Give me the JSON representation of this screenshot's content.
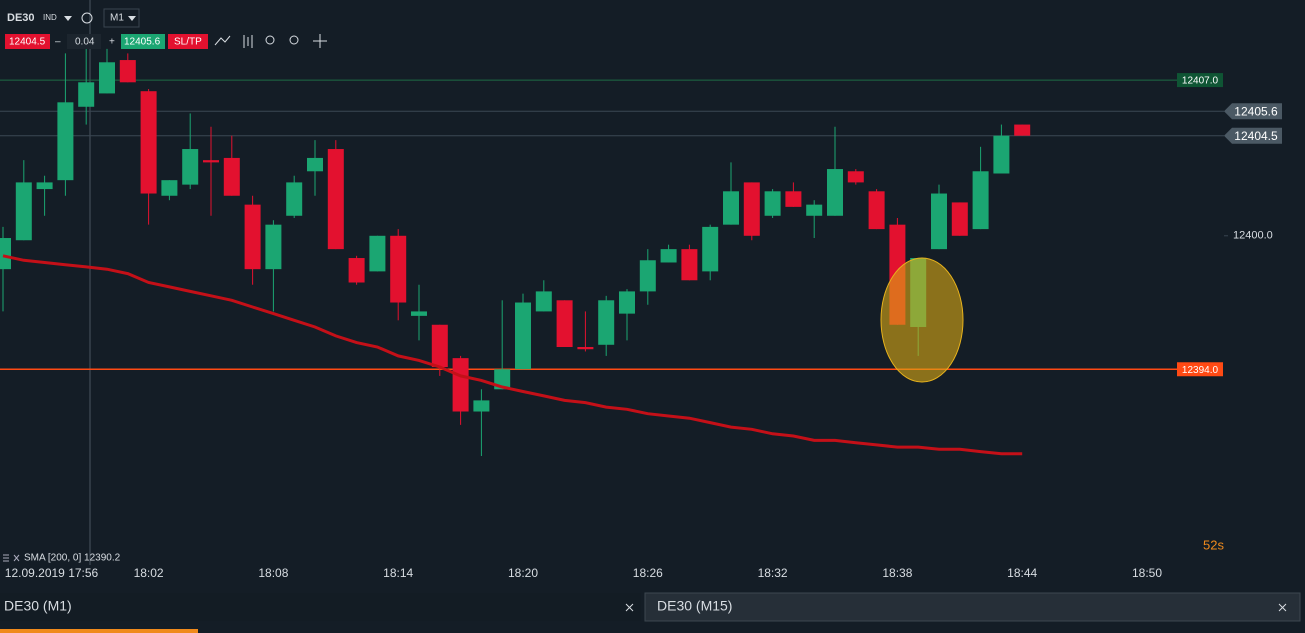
{
  "toolbar": {
    "symbol": "DE30",
    "instrument_type": "IND",
    "timeframe": "M1",
    "bid": "12404.5",
    "minus": "–",
    "quantity": "0.04",
    "plus": "+",
    "ask": "12405.6",
    "sl_tp": "SL/TP"
  },
  "indicator": "SMA [200, 0] 12390.2",
  "countdown": "52s",
  "tabs": [
    "DE30 (M1)",
    "DE30 (M15)"
  ],
  "chart_data": {
    "type": "candlestick",
    "categories": [
      null,
      "12.09.2019 17:56",
      null,
      null,
      null,
      null,
      null,
      "18:02",
      null,
      null,
      null,
      null,
      null,
      "18:08",
      null,
      null,
      null,
      null,
      null,
      "18:14",
      null,
      null,
      null,
      null,
      null,
      "18:20",
      null,
      null,
      null,
      null,
      null,
      "18:26",
      null,
      null,
      null,
      null,
      null,
      "18:32",
      null,
      null,
      null,
      null,
      null,
      "18:38",
      null,
      null,
      null,
      null,
      null,
      "18:44",
      null,
      null,
      null,
      null,
      null,
      "18:50"
    ],
    "open": [
      12398.5,
      12399.8,
      12402.1,
      12402.5,
      12405.8,
      12406.4,
      12407.9,
      12406.5,
      12401.8,
      12402.3,
      12403.4,
      12403.5,
      12401.4,
      12398.5,
      12400.9,
      12402.9,
      12403.9,
      12399.0,
      12398.4,
      12400.0,
      12396.4,
      12396.0,
      12394.5,
      12392.1,
      12393.1,
      12394.0,
      12396.6,
      12397.1,
      12395.0,
      12395.1,
      12396.5,
      12397.5,
      12398.8,
      12399.4,
      12398.4,
      12400.5,
      12402.4,
      12400.9,
      12402.0,
      12400.9,
      12400.9,
      12402.9,
      12402.0,
      12400.5,
      12395.9,
      12399.4,
      12401.5,
      12400.3,
      12402.8,
      12405.0,
      null,
      null,
      null,
      null,
      null,
      null
    ],
    "high": [
      12400.4,
      12403.4,
      12402.7,
      12408.2,
      12408.4,
      12408.4,
      12408.2,
      12406.6,
      12402.5,
      12405.5,
      12404.9,
      12404.5,
      12401.8,
      12400.7,
      12402.7,
      12404.3,
      12404.3,
      12399.1,
      12400.0,
      12400.3,
      12397.8,
      12396.0,
      12394.6,
      12393.1,
      12397.1,
      12397.4,
      12398.0,
      12397.1,
      12396.6,
      12397.3,
      12397.6,
      12399.4,
      12399.6,
      12399.6,
      12400.5,
      12403.3,
      12402.4,
      12402.1,
      12402.4,
      12401.6,
      12404.9,
      12403.0,
      12402.1,
      12400.8,
      12399.0,
      12402.3,
      12401.5,
      12404.0,
      12405.0,
      12405.0,
      null,
      null,
      null,
      null,
      null,
      null
    ],
    "low": [
      12396.6,
      12399.8,
      12400.9,
      12401.8,
      12405.0,
      12406.4,
      12406.9,
      12400.5,
      12401.6,
      12402.1,
      12400.9,
      12401.8,
      12397.8,
      12396.6,
      12400.8,
      12401.8,
      12399.4,
      12397.8,
      12398.4,
      12396.2,
      12395.3,
      12393.7,
      12391.5,
      12390.1,
      12393.1,
      12394.0,
      12396.6,
      12395.0,
      12394.8,
      12394.6,
      12395.3,
      12396.9,
      12398.8,
      12398.0,
      12398.0,
      12400.5,
      12399.8,
      12400.8,
      12401.3,
      12399.9,
      12400.9,
      12402.3,
      12400.3,
      12396.0,
      12394.6,
      12399.4,
      12400.0,
      12400.3,
      12402.8,
      12404.5,
      null,
      null,
      null,
      null,
      null,
      null
    ],
    "close": [
      12399.9,
      12402.4,
      12402.4,
      12406.0,
      12406.9,
      12407.8,
      12406.9,
      12401.9,
      12402.5,
      12403.9,
      12403.3,
      12401.8,
      12398.5,
      12400.5,
      12402.4,
      12403.5,
      12399.4,
      12397.9,
      12400.0,
      12397.0,
      12396.6,
      12394.1,
      12392.1,
      12392.6,
      12394.0,
      12397.0,
      12397.5,
      12395.0,
      12394.9,
      12397.1,
      12397.5,
      12398.9,
      12399.4,
      12398.0,
      12400.4,
      12402.0,
      12400.0,
      12402.0,
      12401.3,
      12401.4,
      12403.0,
      12402.4,
      12400.3,
      12396.0,
      12399.0,
      12401.9,
      12400.0,
      12402.9,
      12404.5,
      12404.5,
      null,
      null,
      null,
      null,
      null,
      null
    ],
    "up_color": "#1ba672",
    "down_color": "#e3112f",
    "sma": {
      "color": "#c41018",
      "values": [
        12399.1,
        12398.9,
        12398.8,
        12398.7,
        12398.6,
        12398.5,
        12398.3,
        12397.9,
        12397.7,
        12397.5,
        12397.3,
        12397.1,
        12396.8,
        12396.5,
        12396.2,
        12395.9,
        12395.5,
        12395.2,
        12395.0,
        12394.6,
        12394.4,
        12394.1,
        12393.7,
        12393.5,
        12393.2,
        12393.0,
        12392.8,
        12392.6,
        12392.5,
        12392.3,
        12392.2,
        12392.0,
        12391.9,
        12391.8,
        12391.6,
        12391.4,
        12391.3,
        12391.1,
        12391.0,
        12390.8,
        12390.8,
        12390.7,
        12390.6,
        12390.5,
        12390.5,
        12390.4,
        12390.4,
        12390.3,
        12390.2,
        12390.2,
        null,
        null,
        null,
        null,
        null,
        null
      ]
    },
    "price_lines": [
      {
        "value": 12407.0,
        "label": "12407.0",
        "color": "#1d6b45",
        "label_color": "#0f5534"
      },
      {
        "value": 12405.6,
        "label": "12405.6",
        "color": "#3b4853",
        "label_color": "#4b5964"
      },
      {
        "value": 12404.5,
        "label": "12404.5",
        "color": "#3b4853",
        "label_color": "#4b5964"
      },
      {
        "value": 12394.0,
        "label": "12394.0",
        "color": "#ff4a14",
        "label_color": "#ff4a14"
      }
    ],
    "ylim": [
      12385.2,
      12410.6
    ],
    "yticks": [
      {
        "value": 12400,
        "label": "12400.0"
      }
    ]
  }
}
